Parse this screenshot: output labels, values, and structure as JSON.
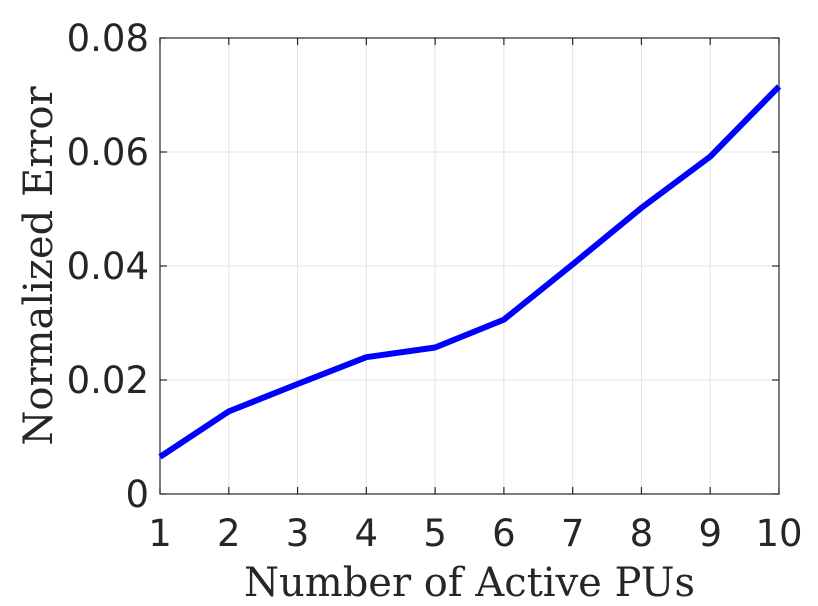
{
  "chart_data": {
    "type": "line",
    "title": "",
    "xlabel": "Number of Active PUs",
    "ylabel": "Normalized Error",
    "x": [
      1,
      2,
      3,
      4,
      5,
      6,
      7,
      8,
      9,
      10
    ],
    "series": [
      {
        "values": [
          0.0065,
          0.0145,
          0.0193,
          0.024,
          0.0257,
          0.0306,
          0.0403,
          0.0502,
          0.0592,
          0.0715
        ],
        "color": "#0000ff"
      }
    ],
    "xlim": [
      1,
      10
    ],
    "ylim": [
      0,
      0.08
    ],
    "xticks": [
      1,
      2,
      3,
      4,
      5,
      6,
      7,
      8,
      9,
      10
    ],
    "xtick_labels": [
      "1",
      "2",
      "3",
      "4",
      "5",
      "6",
      "7",
      "8",
      "9",
      "10"
    ],
    "yticks": [
      0,
      0.02,
      0.04,
      0.06,
      0.08
    ],
    "ytick_labels": [
      "0",
      "0.02",
      "0.04",
      "0.06",
      "0.08"
    ],
    "grid": true,
    "legend": "none"
  }
}
